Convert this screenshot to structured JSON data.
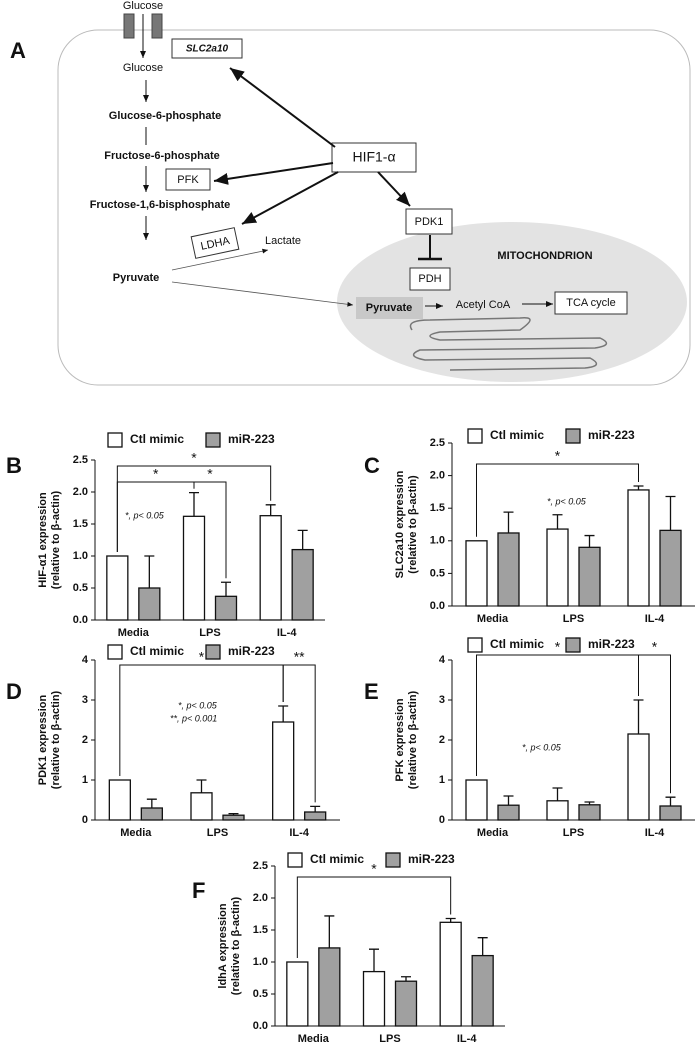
{
  "diagram": {
    "panel": "A",
    "glucose_out": "Glucose",
    "transporter": "SLC2a10",
    "glucose_in": "Glucose",
    "g6p": "Glucose-6-phosphate",
    "f6p": "Fructose-6-phosphate",
    "pfk": "PFK",
    "f16bp": "Fructose-1,6-bisphosphate",
    "ldha": "LDHA",
    "lactate": "Lactate",
    "pyruvate": "Pyruvate",
    "hif": "HIF1-α",
    "pdk1": "PDK1",
    "pdh": "PDH",
    "mito": "MITOCHONDRION",
    "mito_pyruvate": "Pyruvate",
    "acetyl": "Acetyl CoA",
    "tca": "TCA cycle"
  },
  "chart_data": [
    {
      "type": "bar",
      "panel": "B",
      "ylabel": "HIF-α1 expression",
      "ylabel2": "(relative to β-actin)",
      "categories": [
        "Media",
        "LPS",
        "IL-4"
      ],
      "series": [
        {
          "name": "Ctl mimic",
          "color": "#ffffff",
          "values": [
            1.0,
            1.62,
            1.63
          ],
          "errors": [
            null,
            0.37,
            0.17
          ]
        },
        {
          "name": "miR-223",
          "color": "#a0a0a0",
          "values": [
            0.5,
            0.37,
            1.1
          ],
          "errors": [
            0.5,
            0.22,
            0.3
          ]
        }
      ],
      "ylim": [
        0,
        2.5
      ],
      "yticks": [
        {
          "value": 0,
          "label": "0.0"
        },
        0.5,
        {
          "value": 1,
          "label": "1.0"
        },
        1.5,
        {
          "value": 2,
          "label": "2.0"
        },
        2.5
      ],
      "notes": [
        "*, p< 0.05"
      ],
      "annotations": [
        {
          "label": "*",
          "from": {
            "series": 0,
            "category": 0
          },
          "to": {
            "series": 0,
            "category": 2
          }
        },
        {
          "label": "*",
          "from": {
            "series": 0,
            "category": 0
          },
          "to": {
            "series": 0,
            "category": 1
          }
        },
        {
          "label": "*",
          "from": {
            "series": 0,
            "category": 1
          },
          "to": {
            "series": 1,
            "category": 1
          }
        }
      ]
    },
    {
      "type": "bar",
      "panel": "C",
      "ylabel": "SLC2a10 expression",
      "ylabel2": "(relative to β-actin)",
      "categories": [
        "Media",
        "LPS",
        "IL-4"
      ],
      "series": [
        {
          "name": "Ctl mimic",
          "color": "#ffffff",
          "values": [
            1.0,
            1.18,
            1.78
          ],
          "errors": [
            null,
            0.22,
            0.06
          ]
        },
        {
          "name": "miR-223",
          "color": "#a0a0a0",
          "values": [
            1.12,
            0.9,
            1.16
          ],
          "errors": [
            0.32,
            0.18,
            0.52
          ]
        }
      ],
      "ylim": [
        0,
        2.5
      ],
      "yticks": [
        {
          "value": 0,
          "label": "0.0"
        },
        0.5,
        {
          "value": 1,
          "label": "1.0"
        },
        1.5,
        {
          "value": 2,
          "label": "2.0"
        },
        2.5
      ],
      "notes": [
        "*, p< 0.05"
      ],
      "annotations": [
        {
          "label": "*",
          "from": {
            "series": 0,
            "category": 0
          },
          "to": {
            "series": 0,
            "category": 2
          }
        }
      ]
    },
    {
      "type": "bar",
      "panel": "D",
      "ylabel": "PDK1 expression",
      "ylabel2": "(relative to β-actin)",
      "categories": [
        "Media",
        "LPS",
        "IL-4"
      ],
      "series": [
        {
          "name": "Ctl mimic",
          "color": "#ffffff",
          "values": [
            1.0,
            0.68,
            2.45
          ],
          "errors": [
            null,
            0.32,
            0.4
          ]
        },
        {
          "name": "miR-223",
          "color": "#a0a0a0",
          "values": [
            0.3,
            0.12,
            0.2
          ],
          "errors": [
            0.22,
            0.04,
            0.14
          ]
        }
      ],
      "ylim": [
        0,
        4
      ],
      "yticks": [
        0,
        1,
        2,
        3,
        4
      ],
      "notes": [
        "*, p< 0.05",
        "**, p< 0.001"
      ],
      "annotations": [
        {
          "label": "*",
          "from": {
            "series": 0,
            "category": 0
          },
          "to": {
            "series": 0,
            "category": 2
          }
        },
        {
          "label": "**",
          "from": {
            "series": 0,
            "category": 2
          },
          "to": {
            "series": 1,
            "category": 2
          }
        }
      ]
    },
    {
      "type": "bar",
      "panel": "E",
      "ylabel": "PFK expression",
      "ylabel2": "(relative to β-actin)",
      "categories": [
        "Media",
        "LPS",
        "IL-4"
      ],
      "series": [
        {
          "name": "Ctl mimic",
          "color": "#ffffff",
          "values": [
            1.0,
            0.48,
            2.15
          ],
          "errors": [
            null,
            0.32,
            0.85
          ]
        },
        {
          "name": "miR-223",
          "color": "#a0a0a0",
          "values": [
            0.37,
            0.38,
            0.35
          ],
          "errors": [
            0.23,
            0.07,
            0.22
          ]
        }
      ],
      "ylim": [
        0,
        4
      ],
      "yticks": [
        0,
        1,
        2,
        3,
        4
      ],
      "notes": [
        "*, p< 0.05"
      ],
      "annotations": [
        {
          "label": "*",
          "from": {
            "series": 0,
            "category": 0
          },
          "to": {
            "series": 0,
            "category": 2
          }
        },
        {
          "label": "*",
          "from": {
            "series": 0,
            "category": 2
          },
          "to": {
            "series": 1,
            "category": 2
          }
        }
      ]
    },
    {
      "type": "bar",
      "panel": "F",
      "ylabel": "ldhA expression",
      "ylabel2": "(relative to β-actin)",
      "categories": [
        "Media",
        "LPS",
        "IL-4"
      ],
      "series": [
        {
          "name": "Ctl mimic",
          "color": "#ffffff",
          "values": [
            1.0,
            0.85,
            1.62
          ],
          "errors": [
            null,
            0.35,
            0.06
          ]
        },
        {
          "name": "miR-223",
          "color": "#a0a0a0",
          "values": [
            1.22,
            0.7,
            1.1
          ],
          "errors": [
            0.5,
            0.07,
            0.28
          ]
        }
      ],
      "ylim": [
        0,
        2.5
      ],
      "yticks": [
        {
          "value": 0,
          "label": "0.0"
        },
        0.5,
        {
          "value": 1,
          "label": "1.0"
        },
        1.5,
        {
          "value": 2,
          "label": "2.0"
        },
        2.5
      ],
      "annotations": [
        {
          "label": "*",
          "from": {
            "series": 0,
            "category": 0
          },
          "to": {
            "series": 0,
            "category": 2
          }
        }
      ]
    }
  ]
}
